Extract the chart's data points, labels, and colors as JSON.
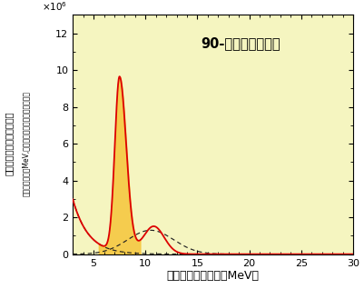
{
  "title": "90-ショットの平均",
  "xlabel": "電子のエネルギー（MeV）",
  "ylabel1": "１ショットの加速電子の数",
  "ylabel2": "（エネルギー幅MeV,放射角度１ステラジアン当り）",
  "xlim": [
    3,
    30
  ],
  "ylim": [
    0,
    13000000
  ],
  "xticks": [
    5,
    10,
    15,
    20,
    25,
    30
  ],
  "yticks": [
    0,
    2,
    4,
    6,
    8,
    10,
    12
  ],
  "bg_color": "#f5f5c0",
  "line_color": "#dd0000",
  "fill_color": "#f5c842",
  "dashed_color": "#222222",
  "title_fontsize": 10.5,
  "label_fontsize": 9,
  "tick_fontsize": 8
}
